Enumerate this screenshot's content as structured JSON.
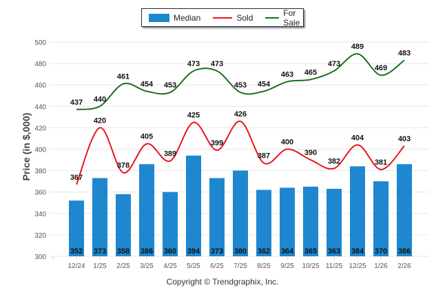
{
  "chart_data": {
    "type": "bar",
    "title": "",
    "xlabel": "",
    "ylabel": "Price (in $,000)",
    "ylim": [
      300,
      500
    ],
    "yticks": [
      300,
      320,
      340,
      360,
      380,
      400,
      420,
      440,
      460,
      480,
      500
    ],
    "grid": true,
    "legend_position": "top-center",
    "categories": [
      "12/24",
      "1/25",
      "2/25",
      "3/25",
      "4/25",
      "5/25",
      "6/25",
      "7/25",
      "8/25",
      "9/25",
      "10/25",
      "11/25",
      "12/25",
      "1/26",
      "2/26"
    ],
    "series": [
      {
        "name": "Median",
        "type": "bar",
        "color": "#1f87d0",
        "values": [
          352,
          373,
          358,
          386,
          360,
          394,
          373,
          380,
          362,
          364,
          365,
          363,
          384,
          370,
          386
        ]
      },
      {
        "name": "Sold",
        "type": "line",
        "color": "#e8141b",
        "values": [
          367,
          420,
          378,
          405,
          389,
          425,
          399,
          426,
          387,
          400,
          390,
          382,
          404,
          381,
          403
        ]
      },
      {
        "name": "For Sale",
        "type": "line",
        "color": "#1a6e1a",
        "values": [
          437,
          440,
          461,
          454,
          453,
          473,
          473,
          453,
          454,
          463,
          465,
          473,
          489,
          469,
          483
        ]
      }
    ]
  },
  "legend": {
    "median": "Median",
    "sold": "Sold",
    "for_sale": "For Sale"
  },
  "footer": {
    "copyright": "Copyright © Trendgraphix, Inc."
  }
}
